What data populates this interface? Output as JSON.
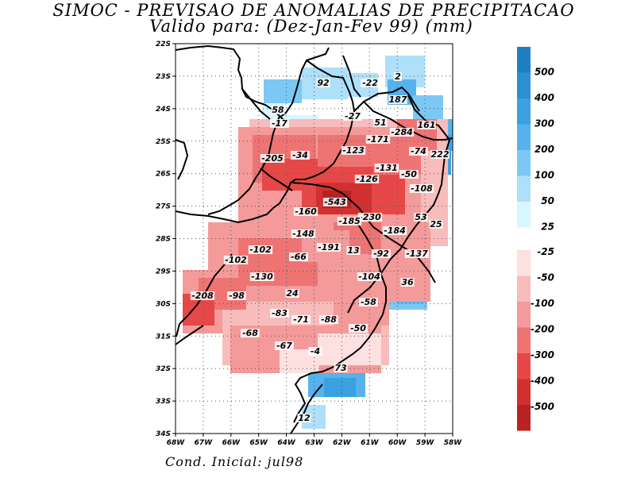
{
  "title": "SIMOC - PREVISAO DE ANOMALIAS DE PRECIPITACAO",
  "subtitle": "Valido para: (Dez-Jan-Fev 99) (mm)",
  "footer": "Cond. Inicial: jul98",
  "axes": {
    "lat_labels": [
      "22S",
      "23S",
      "24S",
      "25S",
      "26S",
      "27S",
      "28S",
      "29S",
      "30S",
      "31S",
      "32S",
      "33S",
      "34S"
    ],
    "lon_labels": [
      "68W",
      "67W",
      "66W",
      "65W",
      "64W",
      "63W",
      "62W",
      "61W",
      "60W",
      "59W",
      "58W"
    ]
  },
  "contour_labels": [
    "92",
    "-22",
    "2",
    "187",
    "58",
    "-17",
    "-27",
    "51",
    "-284",
    "161",
    "-171",
    "-74",
    "222",
    "-205",
    "-34",
    "-123",
    "-131",
    "-50",
    "-126",
    "-108",
    "-543",
    "-160",
    "53",
    "-230",
    "-185",
    "25",
    "-184",
    "-148",
    "-191",
    "13",
    "-92",
    "-137",
    "-102",
    "-102",
    "-66",
    "-130",
    "-104",
    "36",
    "24",
    "-208",
    "-98",
    "-58",
    "-83",
    "-71",
    "-88",
    "-50",
    "-68",
    "-67",
    "-4",
    "73",
    "12"
  ],
  "legend": {
    "positive": [
      {
        "label": "500",
        "color": "#1e7fc4"
      },
      {
        "label": "400",
        "color": "#2a90d2"
      },
      {
        "label": "300",
        "color": "#3aa0e0"
      },
      {
        "label": "200",
        "color": "#55b2ec"
      },
      {
        "label": "100",
        "color": "#7cc8f4"
      },
      {
        "label": "50",
        "color": "#aee0fa"
      },
      {
        "label": "25",
        "color": "#d8f6ff"
      }
    ],
    "negative": [
      {
        "label": "-25",
        "color": "#fde0e0"
      },
      {
        "label": "-50",
        "color": "#f8bcbc"
      },
      {
        "label": "-100",
        "color": "#f49a9a"
      },
      {
        "label": "-200",
        "color": "#ee7474"
      },
      {
        "label": "-300",
        "color": "#e64848"
      },
      {
        "label": "-400",
        "color": "#d23030"
      },
      {
        "label": "-500",
        "color": "#b82222"
      }
    ]
  }
}
